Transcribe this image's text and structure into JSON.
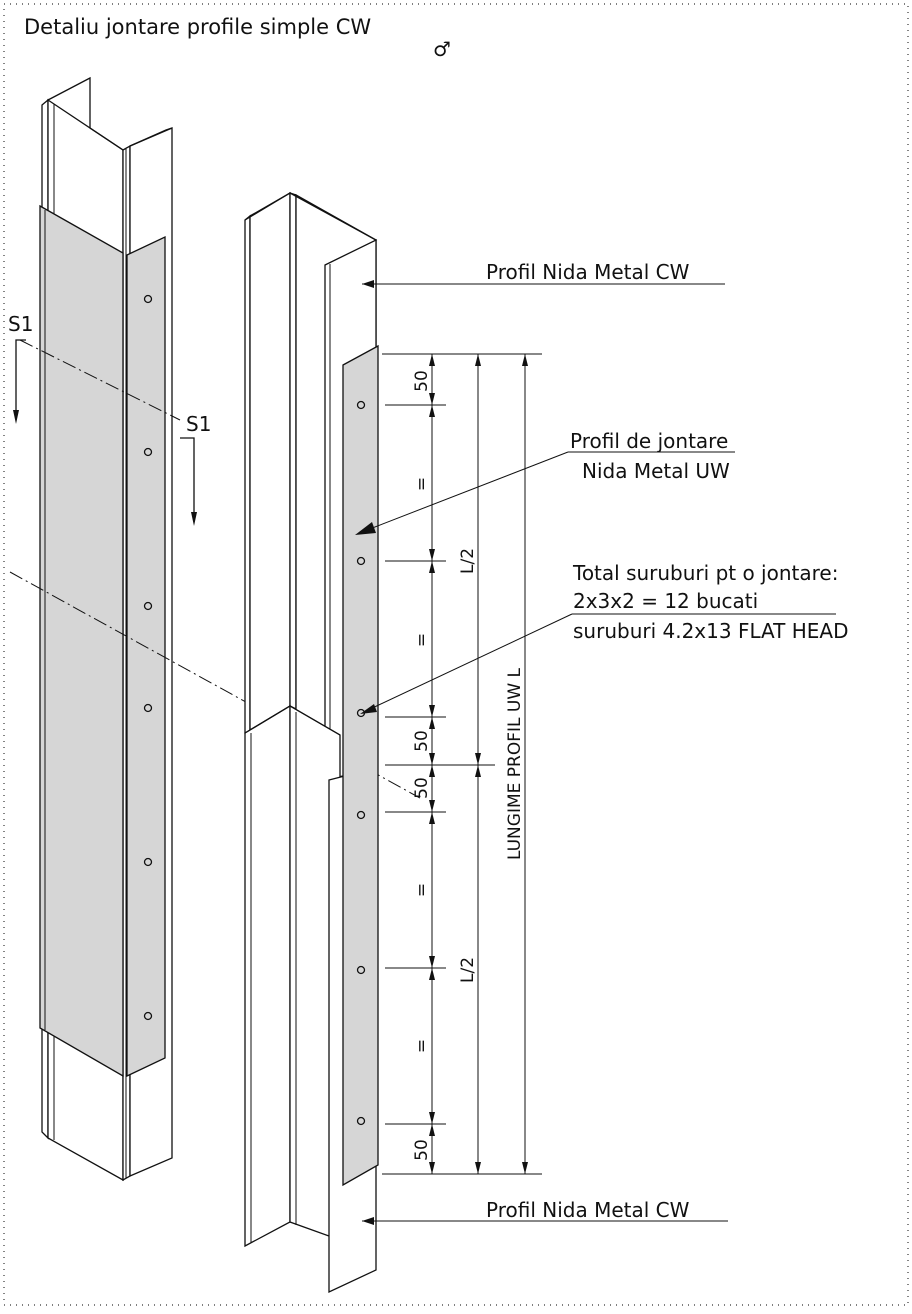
{
  "title": "Detaliu jontare profile simple CW",
  "north_symbol": "♂",
  "section": {
    "label_left": "S1",
    "label_right": "S1"
  },
  "labels": {
    "profile_cw_top": "Profil Nida Metal CW",
    "profile_cw_bottom": "Profil Nida Metal CW",
    "joint_line1": "Profil de jontare",
    "joint_line2": "Nida Metal UW",
    "screws_line1": "Total suruburi pt o jontare:",
    "screws_line2": "2x3x2 = 12 bucati",
    "screws_line3": "suruburi 4.2x13 FLAT HEAD"
  },
  "dimensions": {
    "edge_top": "50",
    "eq1": "=",
    "eq2": "=",
    "mid_upper": "50",
    "mid_lower": "50",
    "eq3": "=",
    "eq4": "=",
    "edge_bottom": "50",
    "half_upper": "L/2",
    "half_lower": "L/2",
    "total": "LUNGIME PROFIL UW L"
  }
}
